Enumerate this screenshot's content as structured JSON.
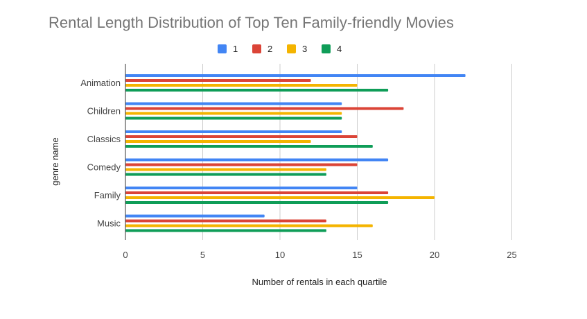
{
  "chart_data": {
    "type": "bar",
    "orientation": "horizontal",
    "title": "Rental Length Distribution of Top Ten Family-friendly Movies",
    "xlabel": "Number of rentals in each quartile",
    "ylabel": "genre name",
    "xlim": [
      0,
      25
    ],
    "xticks": [
      0,
      5,
      10,
      15,
      20,
      25
    ],
    "grid": true,
    "legend_position": "top",
    "categories": [
      "Animation",
      "Children",
      "Classics",
      "Comedy",
      "Family",
      "Music"
    ],
    "series": [
      {
        "name": "1",
        "color": "#4285f4",
        "values": [
          22,
          14,
          14,
          17,
          15,
          9
        ]
      },
      {
        "name": "2",
        "color": "#db4437",
        "values": [
          12,
          18,
          15,
          15,
          17,
          13
        ]
      },
      {
        "name": "3",
        "color": "#f4b400",
        "values": [
          15,
          14,
          12,
          13,
          20,
          16
        ]
      },
      {
        "name": "4",
        "color": "#0f9d58",
        "values": [
          17,
          14,
          16,
          13,
          17,
          13
        ]
      }
    ]
  }
}
